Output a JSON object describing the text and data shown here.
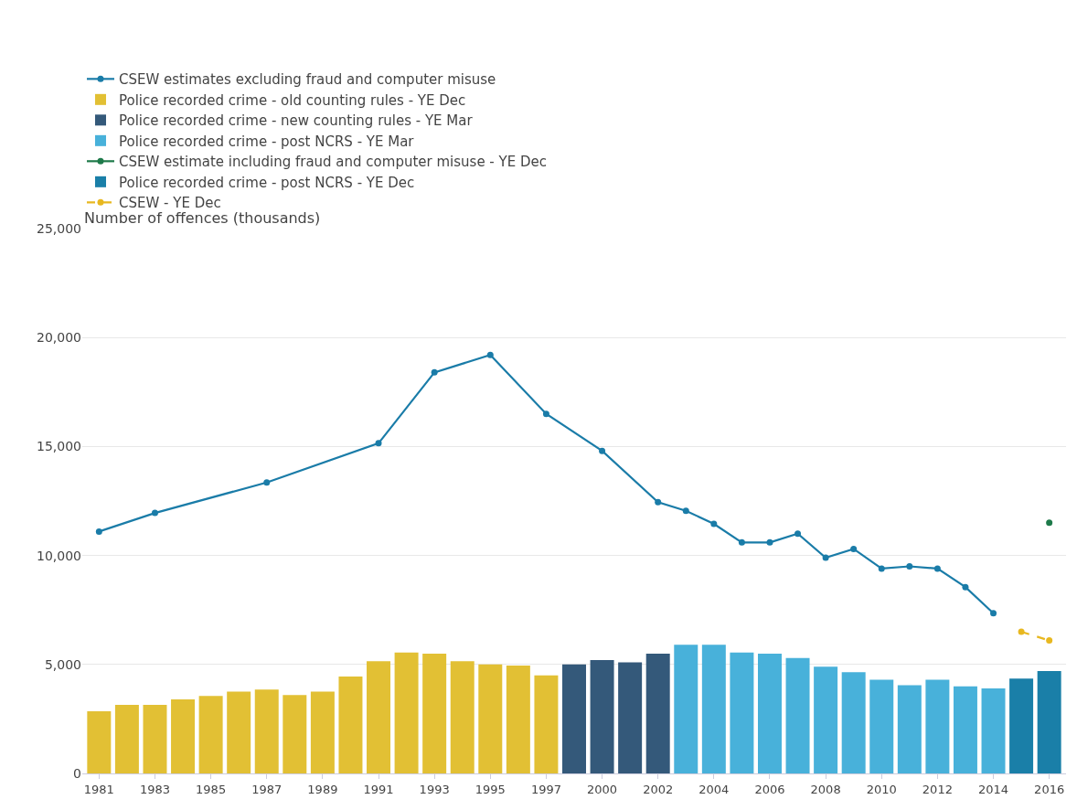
{
  "chart_data": {
    "type": "bar",
    "ylabel": "Number of offences (thousands)",
    "categories": [
      "1981",
      null,
      "1983",
      null,
      "1985",
      null,
      "1987",
      null,
      "1989",
      null,
      "1991",
      null,
      "1993",
      null,
      "1995",
      null,
      "1997",
      null,
      "2000",
      null,
      "2002",
      null,
      "2004",
      null,
      "2006",
      null,
      "2008",
      null,
      "2010",
      null,
      "2012",
      null,
      "2014",
      null,
      "2016"
    ],
    "series": [
      {
        "name": "CSEW estimates excluding fraud and computer misuse",
        "type": "line",
        "marker": "circle",
        "color": "#1a7ca8",
        "values": [
          11100,
          null,
          11950,
          null,
          null,
          null,
          13350,
          null,
          null,
          null,
          15150,
          null,
          18400,
          null,
          19200,
          null,
          16500,
          null,
          14800,
          null,
          12450,
          12050,
          11450,
          10600,
          10600,
          11000,
          9900,
          10300,
          9400,
          9500,
          9400,
          8550,
          7350,
          null,
          null
        ]
      },
      {
        "name": "Police recorded crime - old counting rules - YE Dec",
        "color": "#e2c034",
        "values": [
          2850,
          3150,
          3150,
          3400,
          3550,
          3750,
          3850,
          3600,
          3750,
          4450,
          5150,
          5550,
          5500,
          5150,
          5000,
          4950,
          4500,
          null,
          null,
          null,
          null,
          null,
          null,
          null,
          null,
          null,
          null,
          null,
          null,
          null,
          null,
          null,
          null,
          null,
          null
        ]
      },
      {
        "name": "Police recorded crime - new counting rules - YE Mar",
        "color": "#34597a",
        "values": [
          null,
          null,
          null,
          null,
          null,
          null,
          null,
          null,
          null,
          null,
          null,
          null,
          null,
          null,
          null,
          null,
          null,
          5000,
          5200,
          5100,
          5500,
          null,
          null,
          null,
          null,
          null,
          null,
          null,
          null,
          null,
          null,
          null,
          null,
          null,
          null
        ]
      },
      {
        "name": "Police recorded crime - post NCRS - YE Mar",
        "color": "#48b1da",
        "values": [
          null,
          null,
          null,
          null,
          null,
          null,
          null,
          null,
          null,
          null,
          null,
          null,
          null,
          null,
          null,
          null,
          null,
          null,
          null,
          null,
          null,
          5900,
          5900,
          5550,
          5500,
          5300,
          4900,
          4650,
          4300,
          4050,
          4300,
          4000,
          3900,
          null,
          null
        ]
      },
      {
        "name": "CSEW estimate including fraud and computer misuse - YE Dec",
        "type": "line",
        "marker": "circle",
        "color": "#1e7a4a",
        "values": [
          null,
          null,
          null,
          null,
          null,
          null,
          null,
          null,
          null,
          null,
          null,
          null,
          null,
          null,
          null,
          null,
          null,
          null,
          null,
          null,
          null,
          null,
          null,
          null,
          null,
          null,
          null,
          null,
          null,
          null,
          null,
          null,
          null,
          null,
          11500
        ]
      },
      {
        "name": "Police recorded crime - post NCRS - YE Dec",
        "color": "#1a7fa8",
        "values": [
          null,
          null,
          null,
          null,
          null,
          null,
          null,
          null,
          null,
          null,
          null,
          null,
          null,
          null,
          null,
          null,
          null,
          null,
          null,
          null,
          null,
          null,
          null,
          null,
          null,
          null,
          null,
          null,
          null,
          null,
          null,
          null,
          null,
          4350,
          4700
        ]
      },
      {
        "name": "CSEW - YE Dec",
        "type": "line",
        "marker": "circle",
        "line_style": "dashed",
        "color": "#e8b820",
        "values": [
          null,
          null,
          null,
          null,
          null,
          null,
          null,
          null,
          null,
          null,
          null,
          null,
          null,
          null,
          null,
          null,
          null,
          null,
          null,
          null,
          null,
          null,
          null,
          null,
          null,
          null,
          null,
          null,
          null,
          null,
          null,
          null,
          null,
          6500,
          6100
        ]
      }
    ],
    "ylim": [
      0,
      25000
    ],
    "yticks": [
      {
        "value": 0,
        "label": "0"
      },
      {
        "value": 5000,
        "label": "5,000"
      },
      {
        "value": 10000,
        "label": "10,000"
      },
      {
        "value": 15000,
        "label": "15,000"
      },
      {
        "value": 20000,
        "label": "20,000"
      },
      {
        "value": 25000,
        "label": "25,000"
      }
    ],
    "grid": "y",
    "legend": "top left"
  }
}
